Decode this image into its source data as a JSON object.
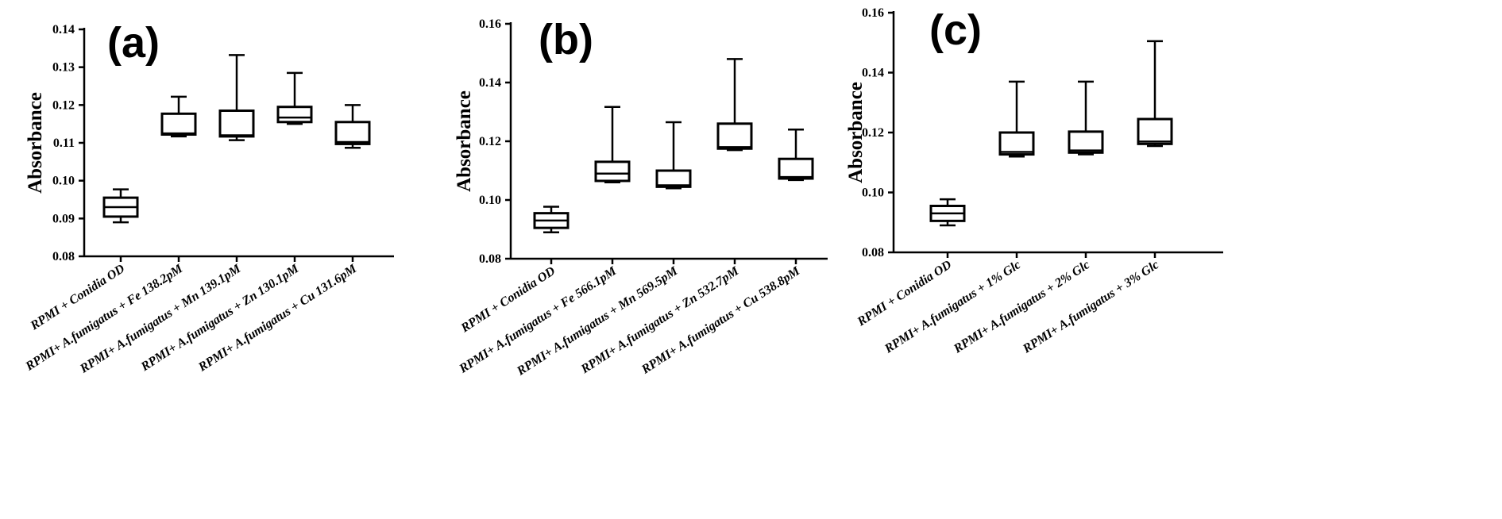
{
  "chart_data": [
    {
      "type": "box",
      "panel_label": "(a)",
      "ylabel": "Absorbance",
      "ylim": [
        0.08,
        0.14
      ],
      "yticks": [
        "0.08",
        "0.09",
        "0.10",
        "0.11",
        "0.12",
        "0.13",
        "0.14"
      ],
      "categories": [
        "RPMI + Conidia OD",
        "RPMI+ A.fumigatus + Fe 138.2pM",
        "RPMI+ A.fumigatus + Mn 139.1pM",
        "RPMI+ A.fumigatus + Zn 130.1pM",
        "RPMI+ A.fumigatus + Cu 131.6pM"
      ],
      "boxes": [
        {
          "min": 0.089,
          "q1": 0.0905,
          "median": 0.093,
          "q3": 0.0955,
          "max": 0.0977
        },
        {
          "min": 0.1117,
          "q1": 0.1122,
          "median": 0.1125,
          "q3": 0.1177,
          "max": 0.1222
        },
        {
          "min": 0.1107,
          "q1": 0.1117,
          "median": 0.112,
          "q3": 0.1185,
          "max": 0.1332
        },
        {
          "min": 0.115,
          "q1": 0.1155,
          "median": 0.1167,
          "q3": 0.1195,
          "max": 0.1285
        },
        {
          "min": 0.1087,
          "q1": 0.1097,
          "median": 0.1102,
          "q3": 0.1155,
          "max": 0.12
        }
      ]
    },
    {
      "type": "box",
      "panel_label": "(b)",
      "ylabel": "Absorbance",
      "ylim": [
        0.08,
        0.16
      ],
      "yticks": [
        "0.08",
        "0.10",
        "0.12",
        "0.14",
        "0.16"
      ],
      "categories": [
        "RPMI + Conidia OD",
        "RPMI+ A.fumigatus + Fe 566.1pM",
        "RPMI+ A.fumigatus + Mn 569.5pM",
        "RPMI+ A.fumigatus + Zn 532.7pM",
        "RPMI+ A.fumigatus + Cu 538.8pM"
      ],
      "boxes": [
        {
          "min": 0.089,
          "q1": 0.0905,
          "median": 0.093,
          "q3": 0.0955,
          "max": 0.0977
        },
        {
          "min": 0.106,
          "q1": 0.1065,
          "median": 0.109,
          "q3": 0.113,
          "max": 0.1317
        },
        {
          "min": 0.104,
          "q1": 0.1045,
          "median": 0.105,
          "q3": 0.11,
          "max": 0.1265
        },
        {
          "min": 0.117,
          "q1": 0.1175,
          "median": 0.118,
          "q3": 0.126,
          "max": 0.148
        },
        {
          "min": 0.1068,
          "q1": 0.1073,
          "median": 0.1078,
          "q3": 0.114,
          "max": 0.124
        }
      ]
    },
    {
      "type": "box",
      "panel_label": "(c)",
      "ylabel": "Absorbance",
      "ylim": [
        0.08,
        0.16
      ],
      "yticks": [
        "0.08",
        "0.10",
        "0.12",
        "0.14",
        "0.16"
      ],
      "categories": [
        "RPMI + Conidia OD",
        "RPMI+ A.fumigatus + 1% Glc",
        "RPMI+ A.fumigatus + 2% Glc",
        "RPMI+ A.fumigatus + 3% Glc"
      ],
      "boxes": [
        {
          "min": 0.089,
          "q1": 0.0905,
          "median": 0.093,
          "q3": 0.0955,
          "max": 0.0977
        },
        {
          "min": 0.112,
          "q1": 0.1127,
          "median": 0.1135,
          "q3": 0.12,
          "max": 0.137
        },
        {
          "min": 0.1127,
          "q1": 0.1133,
          "median": 0.114,
          "q3": 0.1203,
          "max": 0.137
        },
        {
          "min": 0.1155,
          "q1": 0.1162,
          "median": 0.117,
          "q3": 0.1245,
          "max": 0.1505
        }
      ]
    }
  ]
}
